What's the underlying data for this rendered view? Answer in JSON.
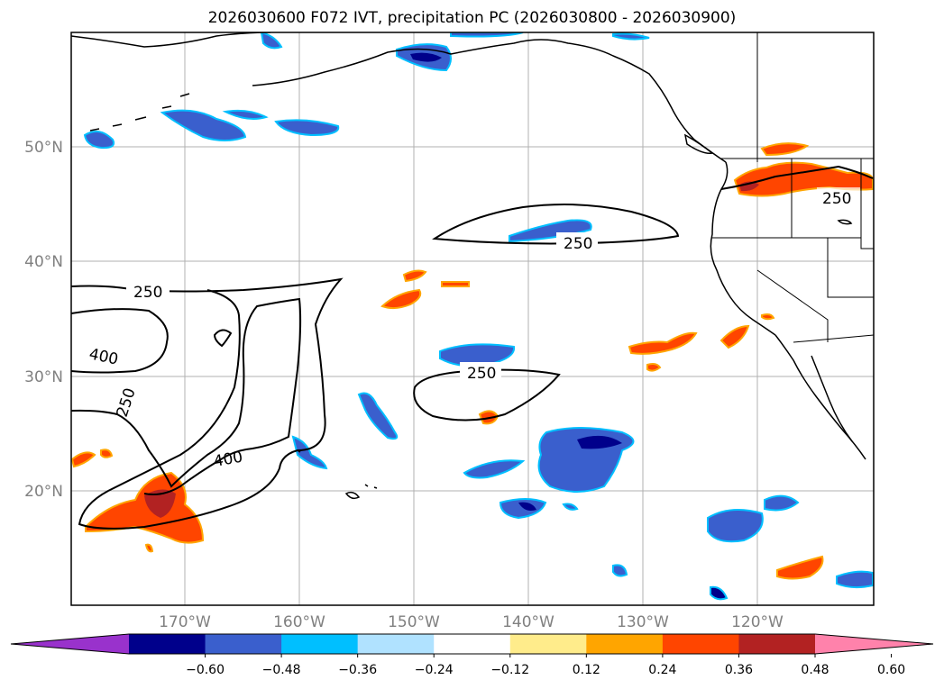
{
  "title": "2026030600 F072 IVT, precipitation PC (2026030800 - 2026030900)",
  "map": {
    "lat_labels": [
      "50°N",
      "40°N",
      "30°N",
      "20°N"
    ],
    "lon_labels": [
      "170°W",
      "160°W",
      "150°W",
      "140°W",
      "130°W",
      "120°W"
    ],
    "ivt_contour_labels": [
      "250",
      "250",
      "250",
      "250",
      "400",
      "400",
      "250"
    ]
  },
  "colorbar": {
    "ticks": [
      "−0.60",
      "−0.48",
      "−0.36",
      "−0.24",
      "−0.12",
      "0.12",
      "0.24",
      "0.36",
      "0.48",
      "0.60"
    ],
    "colors": [
      "#9932cc",
      "#00008b",
      "#3a5fcd",
      "#00bfff",
      "#b0e2ff",
      "#ffffff",
      "#ffec8b",
      "#ffa500",
      "#ff4500",
      "#b22222",
      "#ff82ab"
    ]
  }
}
